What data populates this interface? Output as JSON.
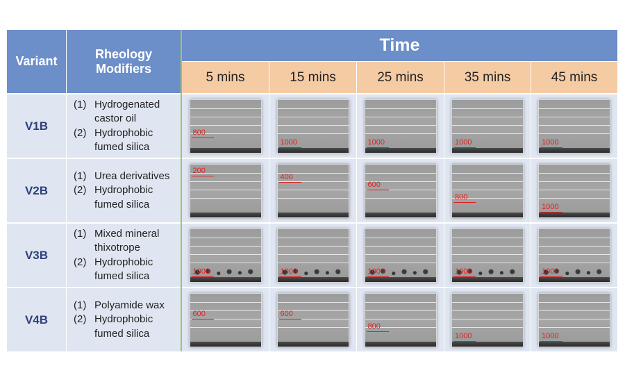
{
  "header": {
    "variant": "Variant",
    "rheology_modifiers": "Rheology Modifiers",
    "time": "Time",
    "times": [
      "5 mins",
      "15 mins",
      "25 mins",
      "35 mins",
      "45 mins"
    ]
  },
  "rows": [
    {
      "variant": "V1B",
      "modifiers": [
        {
          "num": "(1)",
          "lines": [
            "Hydrogenated",
            "castor oil"
          ]
        },
        {
          "num": "(2)",
          "lines": [
            "Hydrophobic",
            "fumed silica"
          ]
        }
      ],
      "marks": [
        "800",
        "1000",
        "1000",
        "1000",
        "1000"
      ]
    },
    {
      "variant": "V2B",
      "modifiers": [
        {
          "num": "(1)",
          "lines": [
            "Urea derivatives"
          ]
        },
        {
          "num": "(2)",
          "lines": [
            "Hydrophobic",
            "fumed silica"
          ]
        }
      ],
      "marks": [
        "200",
        "400",
        "600",
        "800",
        "1000"
      ]
    },
    {
      "variant": "V3B",
      "modifiers": [
        {
          "num": "(1)",
          "lines": [
            "Mixed mineral",
            "thixotrope"
          ]
        },
        {
          "num": "(2)",
          "lines": [
            "Hydrophobic",
            "fumed silica"
          ]
        }
      ],
      "marks": [
        "1000",
        "1000",
        "1000",
        "1000",
        "1000"
      ]
    },
    {
      "variant": "V4B",
      "modifiers": [
        {
          "num": "(1)",
          "lines": [
            "Polyamide wax"
          ]
        },
        {
          "num": "(2)",
          "lines": [
            "Hydrophobic",
            "fumed silica"
          ]
        }
      ],
      "marks": [
        "600",
        "600",
        "800",
        "1000",
        "1000"
      ]
    }
  ],
  "colors": {
    "header_blue": "#6c8ec9",
    "time_header_tan": "#f5cba4",
    "row_background": "#dfe6f1",
    "variant_text": "#2f3f7a",
    "divider_green": "#9dc95a",
    "marker_red": "#e02020"
  }
}
